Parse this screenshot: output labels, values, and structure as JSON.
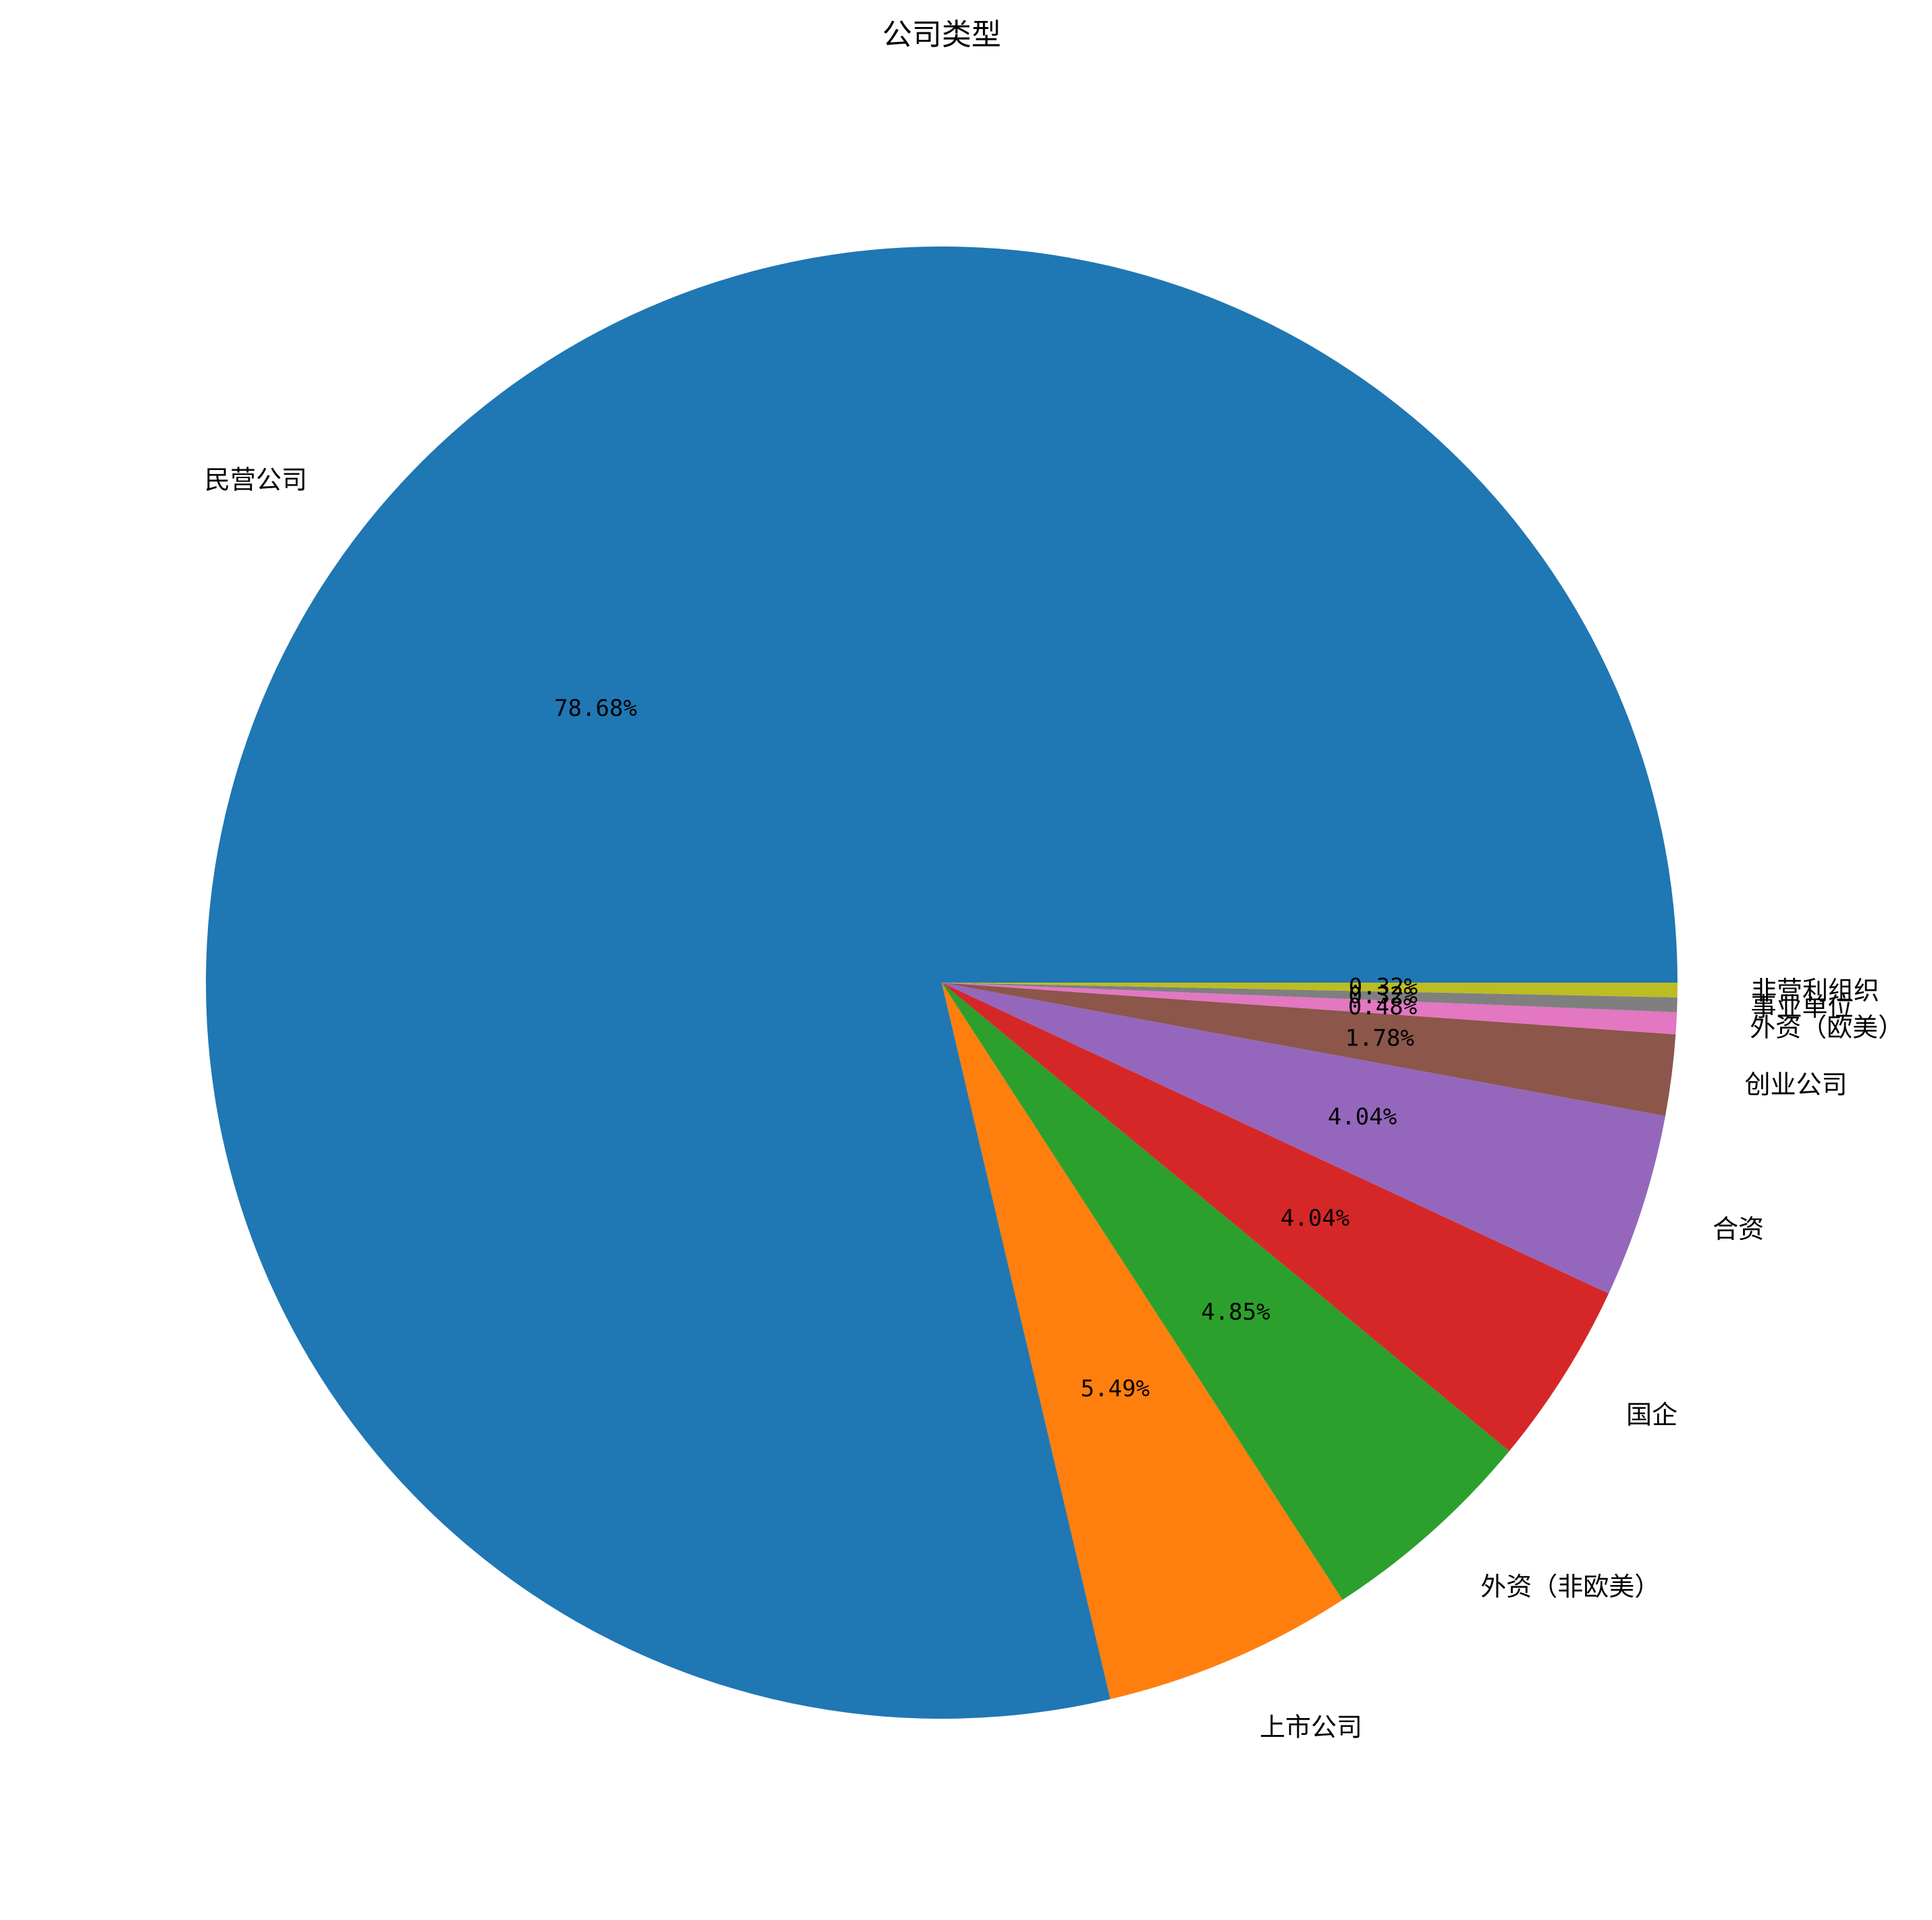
{
  "chart_data": {
    "type": "pie",
    "title": "公司类型",
    "categories": [
      "民营公司",
      "上市公司",
      "外资（非欧美）",
      "国企",
      "合资",
      "创业公司",
      "外资（欧美）",
      "事业单位",
      "非营利组织"
    ],
    "values": [
      78.68,
      5.49,
      4.85,
      4.04,
      4.04,
      1.78,
      0.48,
      0.32,
      0.32
    ],
    "value_labels": [
      "78.68%",
      "5.49%",
      "4.85%",
      "4.04%",
      "4.04%",
      "1.78%",
      "0.48%",
      "0.32%",
      "0.32%"
    ],
    "colors": [
      "#1f77b4",
      "#ff7f0e",
      "#2ca02c",
      "#d62728",
      "#9467bd",
      "#8c564b",
      "#e377c2",
      "#7f7f7f",
      "#bcbd22"
    ],
    "start_angle_deg": 0,
    "direction": "counterclockwise",
    "legend": "none"
  }
}
